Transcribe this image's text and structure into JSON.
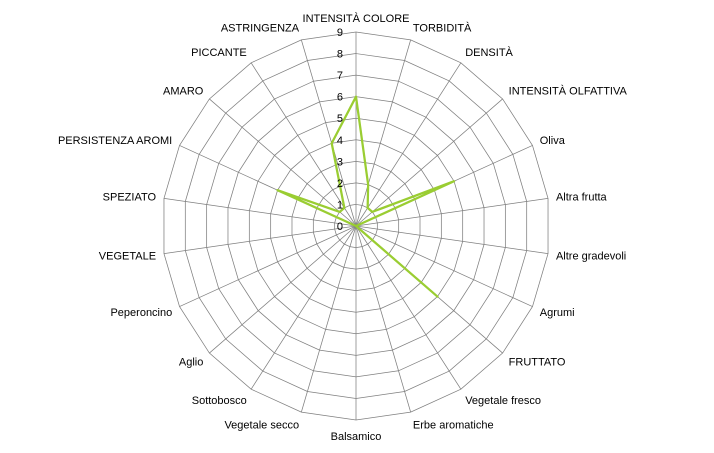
{
  "chart_data": {
    "type": "radar",
    "title": "",
    "categories": [
      "INTENSITÀ COLORE",
      "TORBIDITÀ",
      "DENSITÀ",
      "INTENSITÀ OLFATTIVA",
      "Oliva",
      "Altra frutta",
      "Altre gradevoli",
      "Agrumi",
      "FRUTTATO",
      "Vegetale fresco",
      "Erbe aromatiche",
      "Balsamico",
      "Vegetale secco",
      "Sottobosco",
      "Aglio",
      "Peperoncino",
      "VEGETALE",
      "SPEZIATO",
      "PERSISTENZA AROMI",
      "AMARO",
      "PICCANTE",
      "ASTRINGENZA"
    ],
    "series": [
      {
        "values": [
          6,
          2,
          1,
          1,
          5,
          0,
          0,
          0,
          5,
          0,
          0,
          0,
          0,
          0,
          0,
          0,
          0,
          0,
          4,
          1,
          1,
          4
        ],
        "color": "#9acd32"
      }
    ],
    "rmin": 0,
    "rmax": 9,
    "ticks": [
      "0",
      "1",
      "2",
      "3",
      "4",
      "5",
      "6",
      "7",
      "8",
      "9"
    ],
    "legend": "none",
    "grid": true
  }
}
